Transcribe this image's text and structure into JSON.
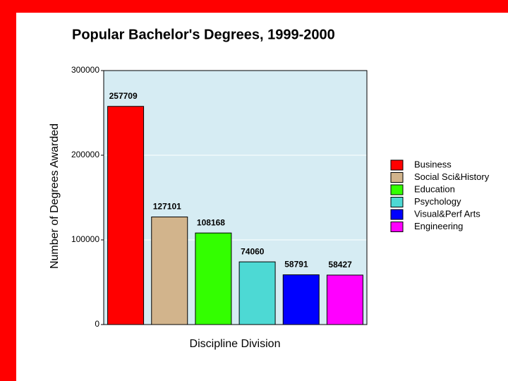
{
  "chart_data": {
    "type": "bar",
    "title": "Popular Bachelor's Degrees, 1999-2000",
    "y_label": "Number of Degrees Awarded",
    "x_label": "Discipline Division",
    "categories": [
      "Business",
      "Social Sci&History",
      "Education",
      "Psychology",
      "Visual&Perf Arts",
      "Engineering"
    ],
    "values": [
      257709,
      127101,
      108168,
      74060,
      58791,
      58427
    ],
    "colors": [
      "#ff0000",
      "#d2b48c",
      "#33ff00",
      "#4dd9d4",
      "#0000ff",
      "#ff00ff"
    ],
    "ylim": [
      0,
      300000
    ],
    "yticks": [
      0,
      100000,
      200000,
      300000
    ],
    "grid": true,
    "legend": "right"
  }
}
